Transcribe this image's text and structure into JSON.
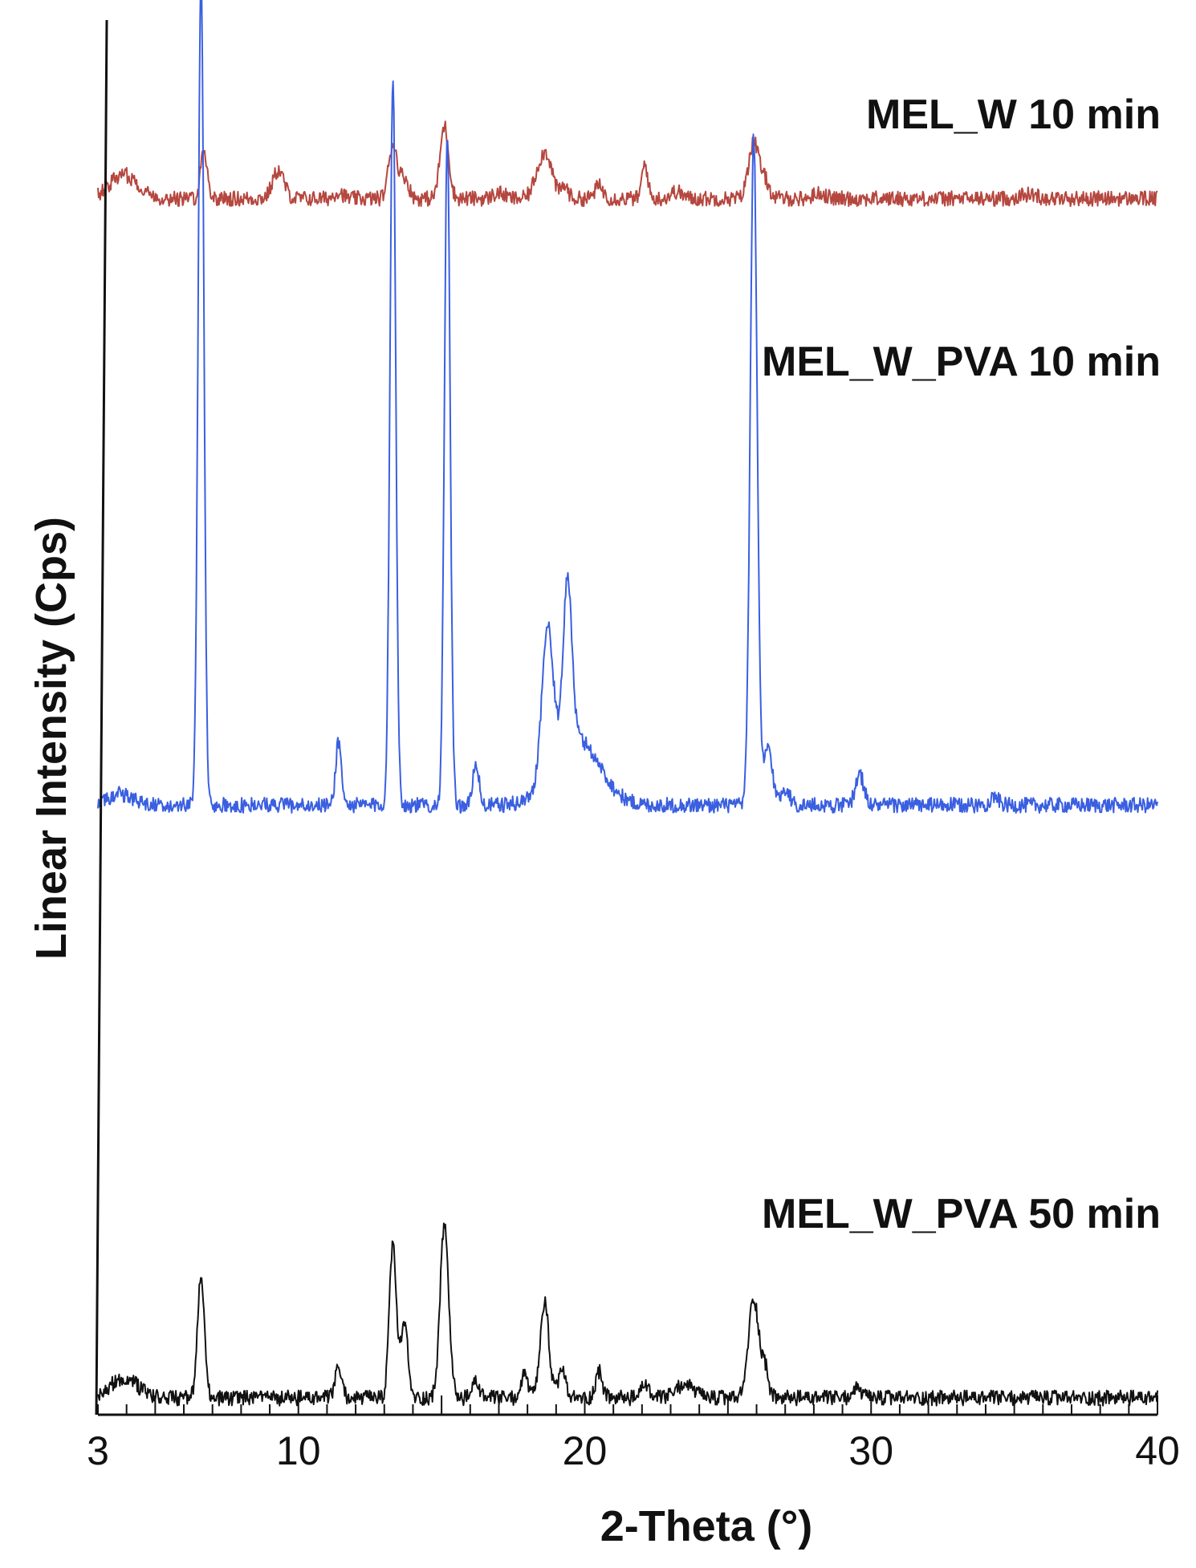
{
  "chart_data": {
    "type": "line",
    "title": "",
    "xlabel": "2-Theta (°)",
    "ylabel": "Linear Intensity (Cps)",
    "xlim": [
      3,
      40
    ],
    "x_ticks": [
      3,
      10,
      20,
      30,
      40
    ],
    "x_tick_labels": [
      "3",
      "10",
      "20",
      "30",
      "40"
    ],
    "grid": false,
    "series": [
      {
        "name": "MEL_W 10 min",
        "color": "#b5473f",
        "offset": 0.872,
        "peaks": [
          [
            3.9,
            0.017,
            0.5
          ],
          [
            6.7,
            0.034,
            0.12
          ],
          [
            9.3,
            0.02,
            0.2
          ],
          [
            11.4,
            0.005,
            0.15
          ],
          [
            13.3,
            0.039,
            0.15
          ],
          [
            13.7,
            0.015,
            0.15
          ],
          [
            15.1,
            0.052,
            0.15
          ],
          [
            17.0,
            0.004,
            0.2
          ],
          [
            18.4,
            0.017,
            0.2
          ],
          [
            18.7,
            0.026,
            0.2
          ],
          [
            19.3,
            0.009,
            0.12
          ],
          [
            20.5,
            0.009,
            0.15
          ],
          [
            22.1,
            0.025,
            0.1
          ],
          [
            23.2,
            0.005,
            0.2
          ],
          [
            25.9,
            0.041,
            0.18
          ],
          [
            26.3,
            0.012,
            0.15
          ],
          [
            28.2,
            0.004,
            0.2
          ],
          [
            35.5,
            0.003,
            0.3
          ]
        ]
      },
      {
        "name": "MEL_W_PVA 10 min",
        "color": "#3a5fe0",
        "offset": 0.437,
        "peaks": [
          [
            3.8,
            0.008,
            0.4
          ],
          [
            6.6,
            0.594,
            0.1
          ],
          [
            11.4,
            0.046,
            0.1
          ],
          [
            13.3,
            0.524,
            0.1
          ],
          [
            15.2,
            0.478,
            0.1
          ],
          [
            16.2,
            0.032,
            0.1
          ],
          [
            18.7,
            0.106,
            0.2
          ],
          [
            19.4,
            0.12,
            0.15
          ],
          [
            19.7,
            0.048,
            0.8
          ],
          [
            25.9,
            0.48,
            0.12
          ],
          [
            26.4,
            0.042,
            0.15
          ],
          [
            27.0,
            0.012,
            0.15
          ],
          [
            29.6,
            0.022,
            0.15
          ],
          [
            34.3,
            0.006,
            0.15
          ]
        ]
      },
      {
        "name": "MEL_W_PVA 50 min",
        "color": "#111111",
        "offset": 0.012,
        "peaks": [
          [
            3.9,
            0.014,
            0.5
          ],
          [
            6.6,
            0.086,
            0.12
          ],
          [
            11.4,
            0.021,
            0.12
          ],
          [
            13.3,
            0.111,
            0.12
          ],
          [
            13.7,
            0.055,
            0.12
          ],
          [
            15.1,
            0.124,
            0.15
          ],
          [
            16.2,
            0.012,
            0.12
          ],
          [
            17.9,
            0.017,
            0.12
          ],
          [
            18.6,
            0.068,
            0.15
          ],
          [
            19.2,
            0.021,
            0.12
          ],
          [
            20.5,
            0.019,
            0.12
          ],
          [
            22.1,
            0.011,
            0.12
          ],
          [
            23.5,
            0.01,
            0.3
          ],
          [
            25.9,
            0.072,
            0.18
          ],
          [
            26.3,
            0.02,
            0.12
          ],
          [
            29.5,
            0.007,
            0.15
          ]
        ]
      }
    ]
  }
}
